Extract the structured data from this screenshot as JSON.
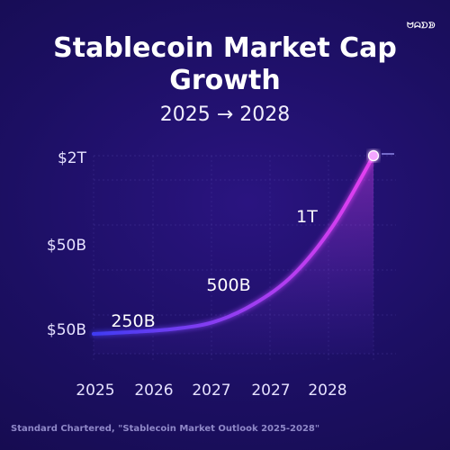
{
  "brand": {
    "logo_text": "ᗢᗣᗤᗥ"
  },
  "colors": {
    "background": "#1c0f63",
    "line_start": "#3f3bf2",
    "line_end": "#e63ff0",
    "grid": "#5c4fb4"
  },
  "chart_data": {
    "type": "line",
    "title": "Stablecoin Market Cap Growth",
    "subtitle": "2025 → 2028",
    "x_tick_labels": [
      "2025",
      "2026",
      "2027",
      "2027",
      "2028"
    ],
    "y_tick_labels": [
      "$2T",
      "$50B",
      "$50B"
    ],
    "series": [
      {
        "values": [
          {
            "x": 2025.0,
            "y": 0.2
          },
          {
            "x": 2025.5,
            "y": 0.22
          },
          {
            "x": 2026.0,
            "y": 0.25
          },
          {
            "x": 2026.5,
            "y": 0.32
          },
          {
            "x": 2027.0,
            "y": 0.5
          },
          {
            "x": 2027.5,
            "y": 0.8
          },
          {
            "x": 2028.0,
            "y": 1.3
          },
          {
            "x": 2028.5,
            "y": 2.0
          }
        ]
      }
    ],
    "annotations": [
      {
        "text": "250B",
        "x": 2025.6
      },
      {
        "text": "500B",
        "x": 2026.9
      },
      {
        "text": "1T",
        "x": 2027.75
      }
    ],
    "grid": true,
    "legend": "none"
  },
  "source": "Standard Chartered, \"Stablecoin Market Outlook 2025-2028\""
}
